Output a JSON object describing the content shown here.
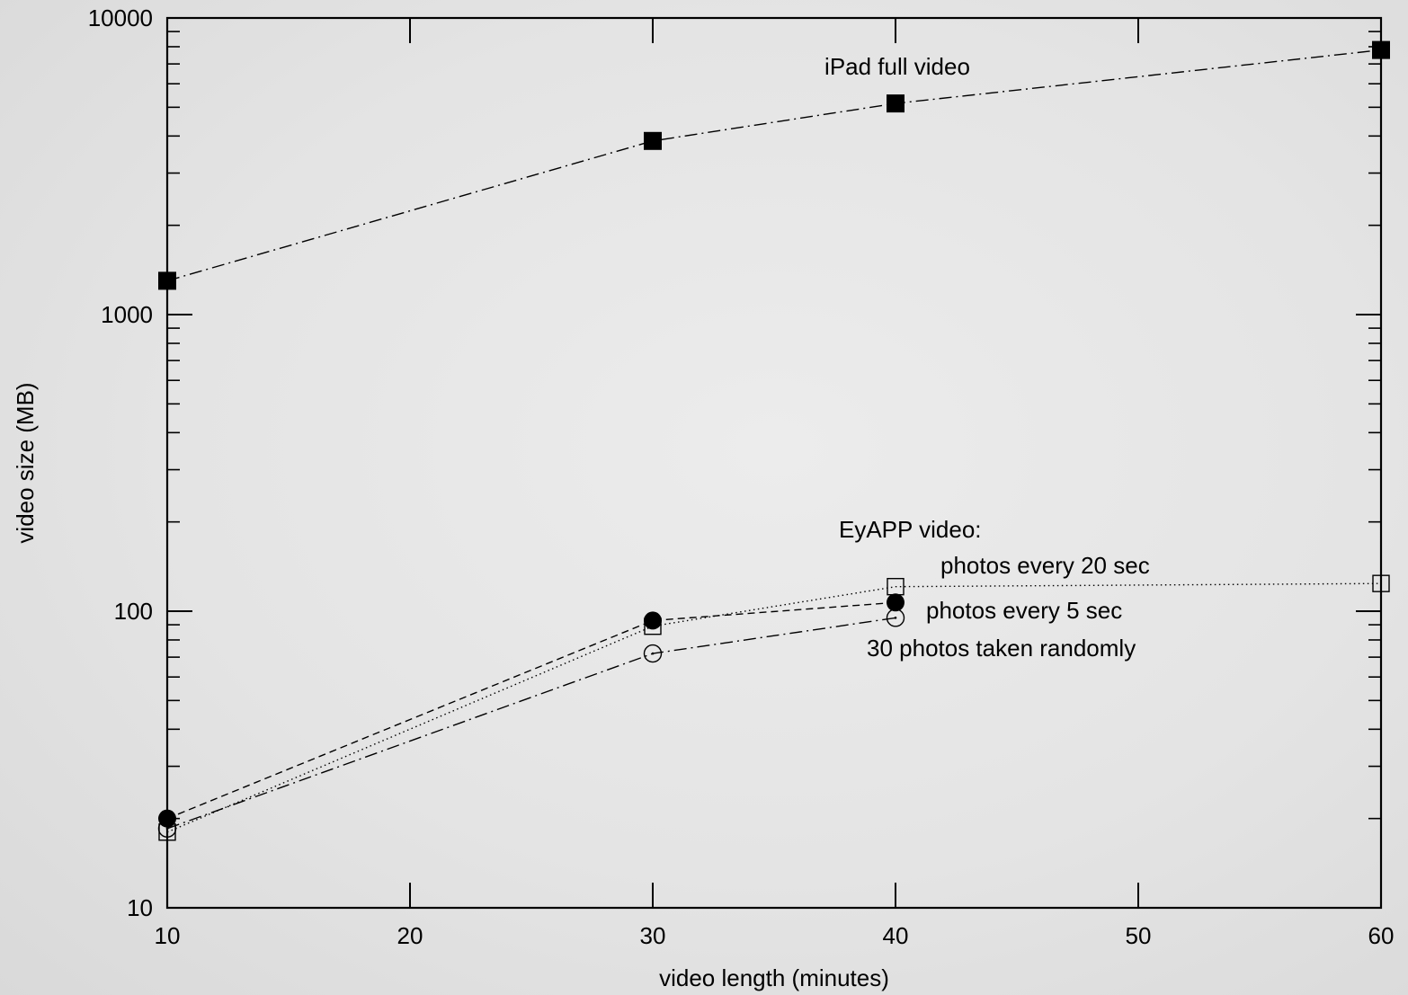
{
  "chart_data": {
    "type": "line",
    "title": "",
    "xlabel": "video length (minutes)",
    "ylabel": "video size (MB)",
    "xlim": [
      10,
      60
    ],
    "ylim": [
      10,
      10000
    ],
    "yscale": "log",
    "grid": false,
    "x_ticks": [
      10,
      20,
      30,
      40,
      50,
      60
    ],
    "y_ticks": [
      10,
      100,
      1000,
      10000
    ],
    "x_tick_labels": [
      "10",
      "20",
      "30",
      "40",
      "50",
      "60"
    ],
    "y_tick_labels": [
      "10",
      "100",
      "1000",
      "10000"
    ],
    "series": [
      {
        "name": "iPad full video",
        "marker": "filled-square",
        "line_style": "dash-dot",
        "points": [
          {
            "x": 10,
            "y": 1300
          },
          {
            "x": 30,
            "y": 3850
          },
          {
            "x": 40,
            "y": 5150
          },
          {
            "x": 60,
            "y": 7800
          }
        ]
      },
      {
        "name": "photos every 20 sec",
        "marker": "open-square",
        "line_style": "dotted",
        "points": [
          {
            "x": 10,
            "y": 18
          },
          {
            "x": 30,
            "y": 89
          },
          {
            "x": 40,
            "y": 121
          },
          {
            "x": 60,
            "y": 124
          }
        ]
      },
      {
        "name": "photos every 5 sec",
        "marker": "filled-circle",
        "line_style": "dashed",
        "points": [
          {
            "x": 10,
            "y": 20
          },
          {
            "x": 30,
            "y": 93
          },
          {
            "x": 40,
            "y": 107
          }
        ]
      },
      {
        "name": "30 photos taken randomly",
        "marker": "open-circle-dot",
        "line_style": "dash-dot",
        "points": [
          {
            "x": 10,
            "y": 18.5
          },
          {
            "x": 30,
            "y": 72
          },
          {
            "x": 40,
            "y": 95
          }
        ]
      }
    ],
    "annotations": {
      "ipad": "iPad full video",
      "eyapp_heading": "EyAPP video:",
      "eyapp_20sec": "photos every 20 sec",
      "eyapp_5sec": "photos every 5 sec",
      "eyapp_random": "30 photos taken randomly"
    }
  }
}
